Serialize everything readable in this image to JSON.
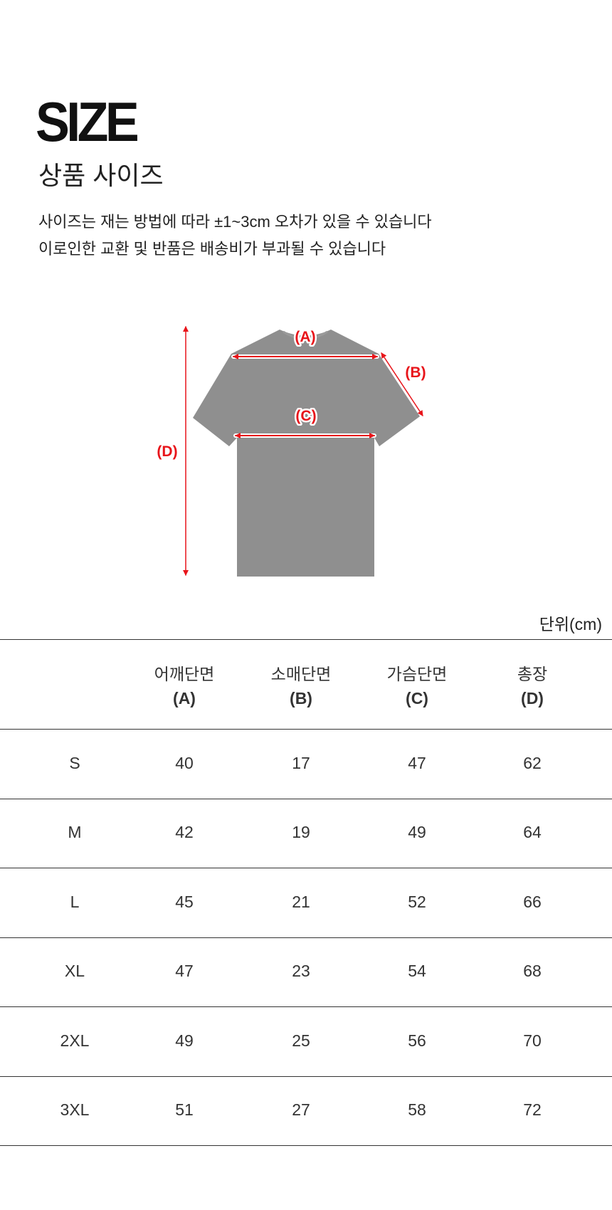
{
  "header": {
    "title": "SIZE",
    "subtitle": "상품 사이즈",
    "notes": [
      "사이즈는 재는 방법에 따라 ±1~3cm 오차가 있을 수 있습니다",
      "이로인한 교환 및 반품은 배송비가 부과될 수 있습니다"
    ]
  },
  "diagram": {
    "labels": {
      "a": "(A)",
      "b": "(B)",
      "c": "(C)",
      "d": "(D)"
    },
    "shirt_color": "#8f8f8f",
    "arrow_color": "#e8141a"
  },
  "table": {
    "unit": "단위(cm)",
    "columns": [
      {
        "name": "어깨단면",
        "code": "(A)"
      },
      {
        "name": "소매단면",
        "code": "(B)"
      },
      {
        "name": "가슴단면",
        "code": "(C)"
      },
      {
        "name": "총장",
        "code": "(D)"
      }
    ],
    "rows": [
      {
        "size": "S",
        "values": [
          "40",
          "17",
          "47",
          "62"
        ]
      },
      {
        "size": "M",
        "values": [
          "42",
          "19",
          "49",
          "64"
        ]
      },
      {
        "size": "L",
        "values": [
          "45",
          "21",
          "52",
          "66"
        ]
      },
      {
        "size": "XL",
        "values": [
          "47",
          "23",
          "54",
          "68"
        ]
      },
      {
        "size": "2XL",
        "values": [
          "49",
          "25",
          "56",
          "70"
        ]
      },
      {
        "size": "3XL",
        "values": [
          "51",
          "27",
          "58",
          "72"
        ]
      }
    ]
  }
}
